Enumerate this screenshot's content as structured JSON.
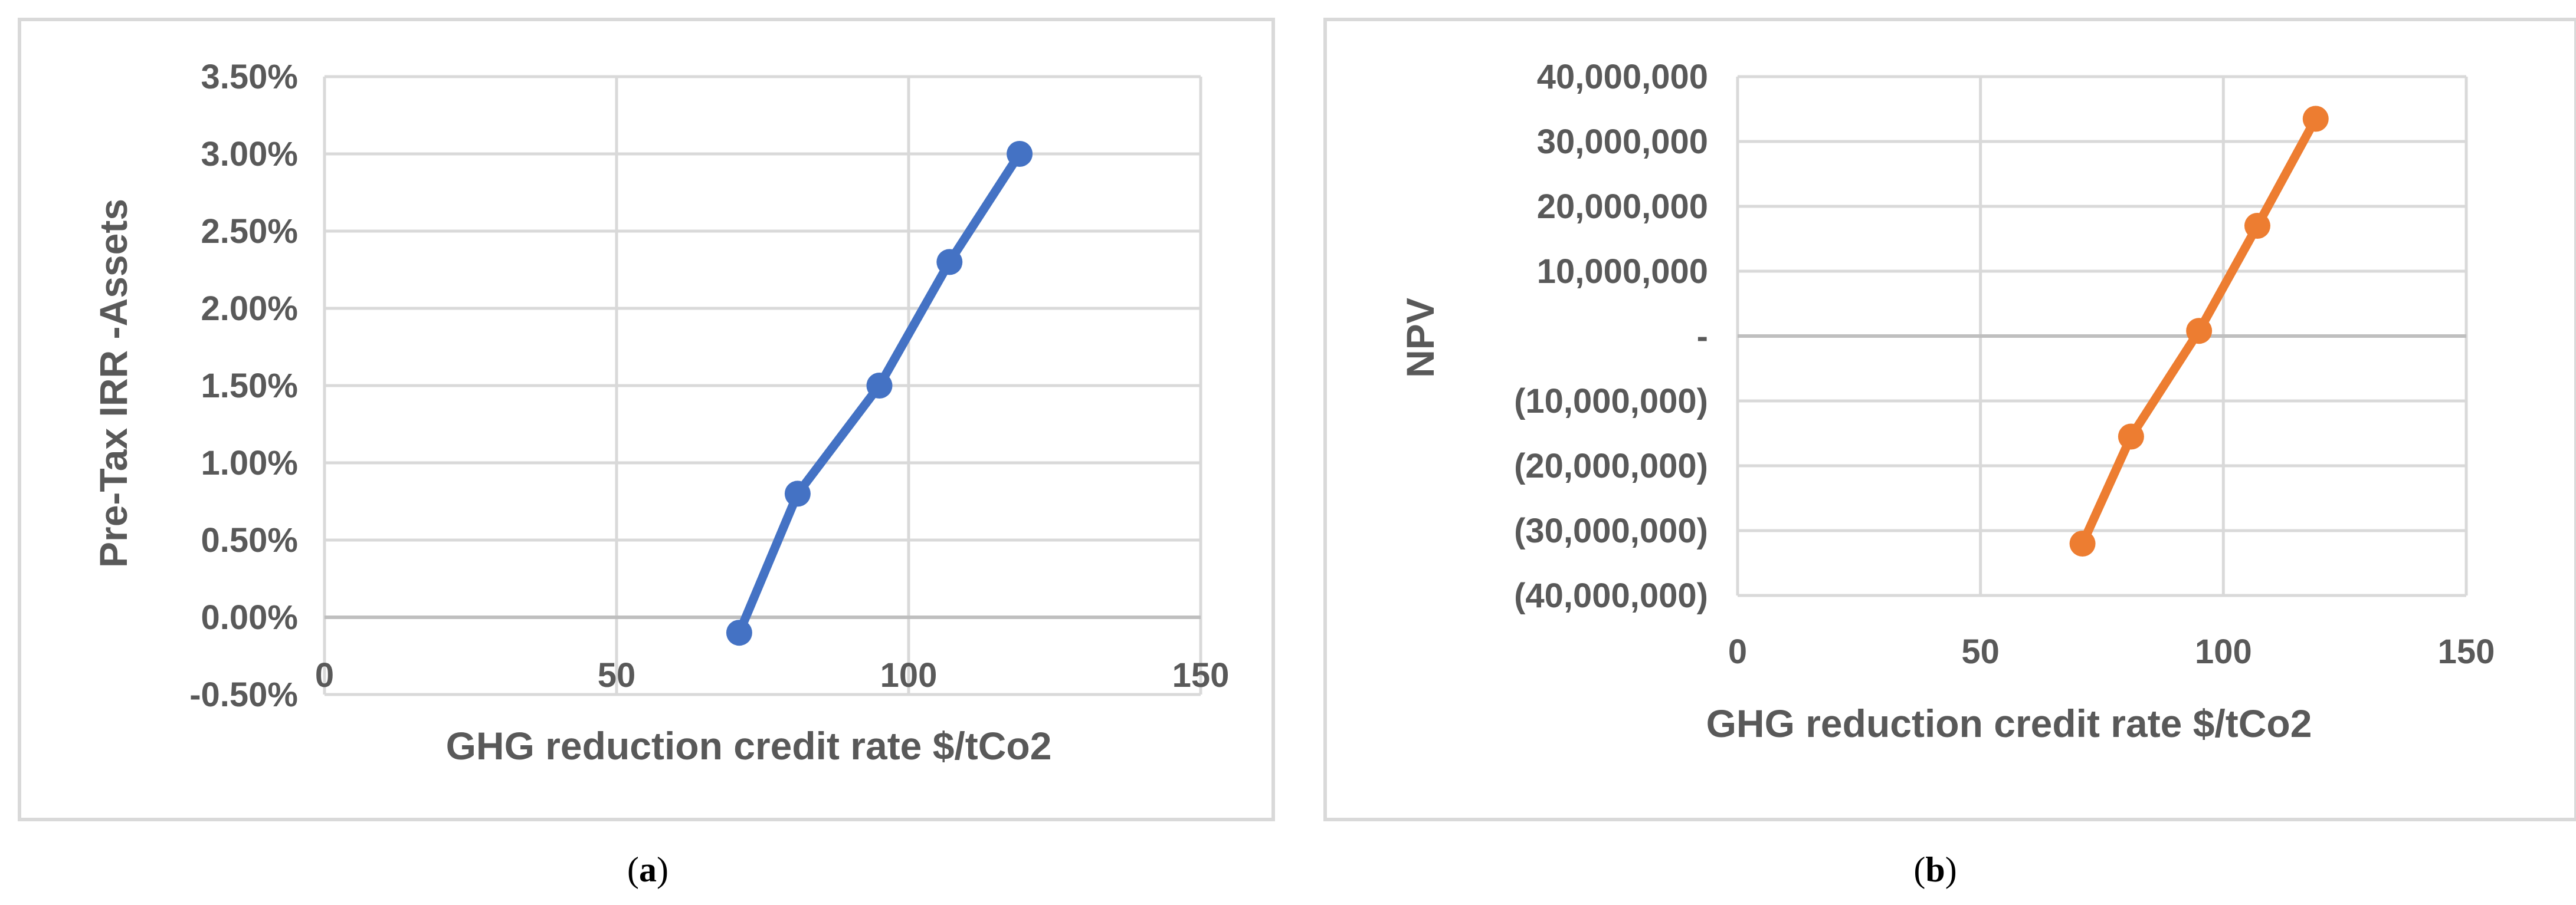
{
  "chart_data": [
    {
      "panel": "a",
      "type": "line",
      "caption_open": "(",
      "caption_letter": "a",
      "caption_close": ")",
      "xlabel": "GHG reduction credit rate $/tCo2",
      "ylabel": "Pre-Tax IRR -Assets",
      "xlim": [
        0,
        150
      ],
      "ylim": [
        -0.5,
        3.5
      ],
      "x_ticks": [
        "0",
        "50",
        "100",
        "150"
      ],
      "y_ticks": [
        "-0.50%",
        "0.00%",
        "0.50%",
        "1.00%",
        "1.50%",
        "2.00%",
        "2.50%",
        "3.00%",
        "3.50%"
      ],
      "grid": true,
      "color": "#4472c4",
      "series": [
        {
          "x": [
            71,
            81,
            95,
            107,
            119
          ],
          "y": [
            -0.1,
            0.8,
            1.5,
            2.3,
            3.0
          ]
        }
      ]
    },
    {
      "panel": "b",
      "type": "line",
      "caption_open": "(",
      "caption_letter": "b",
      "caption_close": ")",
      "xlabel": "GHG reduction credit rate $/tCo2",
      "ylabel": "NPV",
      "xlim": [
        0,
        150
      ],
      "ylim": [
        -40000000,
        40000000
      ],
      "x_ticks": [
        "0",
        "50",
        "100",
        "150"
      ],
      "y_ticks": [
        "(40,000,000)",
        "(30,000,000)",
        "(20,000,000)",
        "(10,000,000)",
        "-",
        "10,000,000",
        "20,000,000",
        "30,000,000",
        "40,000,000"
      ],
      "grid": true,
      "color": "#ed7d31",
      "series": [
        {
          "x": [
            71,
            81,
            95,
            107,
            119
          ],
          "y": [
            -32000000,
            -15500000,
            800000,
            17000000,
            33500000
          ]
        }
      ]
    }
  ]
}
